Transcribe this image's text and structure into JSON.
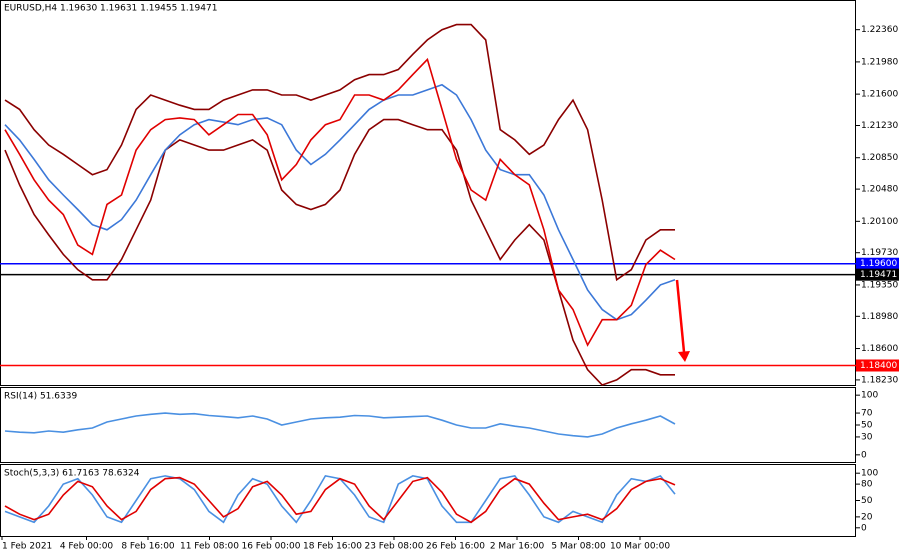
{
  "chart_data": [
    {
      "type": "line",
      "title": "EURUSD,H4  1.19630 1.19631 1.19455 1.19471",
      "ylim": [
        1.1817,
        1.2271
      ],
      "yticks": [
        {
          "value": 1.2236,
          "label": "1.22360"
        },
        {
          "value": 1.2198,
          "label": "1.21980"
        },
        {
          "value": 1.216,
          "label": "1.21600"
        },
        {
          "value": 1.2123,
          "label": "1.21230"
        },
        {
          "value": 1.2085,
          "label": "1.20850"
        },
        {
          "value": 1.2048,
          "label": "1.20480"
        },
        {
          "value": 1.201,
          "label": "1.20100"
        },
        {
          "value": 1.1973,
          "label": "1.19730"
        },
        {
          "value": 1.1935,
          "label": "1.19350"
        },
        {
          "value": 1.1898,
          "label": "1.18980"
        },
        {
          "value": 1.186,
          "label": "1.18600"
        },
        {
          "value": 1.1823,
          "label": "1.18230"
        }
      ],
      "levels": [
        {
          "value": 1.196,
          "label": "1.19600",
          "color": "#0000ff"
        },
        {
          "value": 1.19471,
          "label": "1.19471",
          "color": "#000000"
        },
        {
          "value": 1.184,
          "label": "1.18400",
          "color": "#ff0000"
        }
      ],
      "xticks": [
        "1 Feb 2021",
        "4 Feb 00:00",
        "8 Feb 16:00",
        "11 Feb 08:00",
        "16 Feb 00:00",
        "18 Feb 16:00",
        "23 Feb 08:00",
        "26 Feb 16:00",
        "2 Mar 16:00",
        "5 Mar 08:00",
        "10 Mar 00:00"
      ],
      "series": [
        {
          "color": "#8b0000",
          "values": [
            1.2153,
            1.2142,
            1.2118,
            1.21,
            1.2089,
            1.2077,
            1.2065,
            1.2071,
            1.21,
            1.2142,
            1.2159,
            1.2153,
            1.2147,
            1.2142,
            1.2142,
            1.2153,
            1.2159,
            1.2165,
            1.2165,
            1.2159,
            1.2159,
            1.2153,
            1.2159,
            1.2165,
            1.2177,
            1.2183,
            1.2183,
            1.2189,
            1.2207,
            1.2224,
            1.2236,
            1.2242,
            1.2242,
            1.2224,
            1.2118,
            1.2106,
            1.2089,
            1.21,
            1.213,
            1.2153,
            1.2118,
            1.2035,
            1.1941,
            1.1953,
            1.1988,
            1.2,
            1.2
          ]
        },
        {
          "color": "#8b0000",
          "values": [
            1.2094,
            1.2053,
            1.2018,
            1.1994,
            1.1971,
            1.1953,
            1.1941,
            1.1941,
            1.1965,
            1.2,
            1.2035,
            1.2094,
            1.2106,
            1.21,
            1.2094,
            1.2094,
            1.21,
            1.2106,
            1.2094,
            1.2047,
            1.203,
            1.2024,
            1.203,
            1.2047,
            1.2089,
            1.2118,
            1.213,
            1.213,
            1.2124,
            1.2118,
            1.2118,
            1.2094,
            1.2035,
            1.2,
            1.1965,
            1.1988,
            1.2006,
            1.1988,
            1.1929,
            1.187,
            1.1835,
            1.1817,
            1.1823,
            1.1835,
            1.1835,
            1.1829,
            1.1829
          ]
        },
        {
          "color": "#3c78d8",
          "values": [
            1.2124,
            1.2106,
            1.2083,
            1.2059,
            1.2041,
            1.2024,
            1.2006,
            1.2,
            1.2012,
            1.2035,
            1.2065,
            1.2094,
            1.2112,
            1.2124,
            1.213,
            1.2127,
            1.2124,
            1.213,
            1.2132,
            1.2124,
            1.2094,
            1.2077,
            1.2089,
            1.2106,
            1.2124,
            1.2142,
            1.2153,
            1.2159,
            1.2159,
            1.2165,
            1.2171,
            1.2159,
            1.213,
            1.2094,
            1.2071,
            1.2065,
            1.2065,
            1.2041,
            1.2,
            1.1965,
            1.1929,
            1.1906,
            1.1894,
            1.19,
            1.1917,
            1.1935,
            1.1941
          ]
        },
        {
          "color": "#e00000",
          "values": [
            1.2118,
            1.2089,
            1.2059,
            1.2035,
            1.2018,
            1.1982,
            1.1971,
            1.203,
            1.2041,
            1.2094,
            1.2118,
            1.213,
            1.2132,
            1.213,
            1.2112,
            1.2124,
            1.2136,
            1.2136,
            1.2112,
            1.2059,
            1.2077,
            1.2106,
            1.2124,
            1.213,
            1.2159,
            1.2159,
            1.2153,
            1.2165,
            1.2183,
            1.2201,
            1.2142,
            1.2083,
            1.2047,
            1.2035,
            1.2083,
            1.2065,
            1.2053,
            1.2,
            1.1929,
            1.1906,
            1.1864,
            1.1894,
            1.1894,
            1.1911,
            1.1959,
            1.1976,
            1.1965
          ]
        }
      ]
    },
    {
      "type": "line",
      "title": "RSI(14) 51.6339",
      "ylim": [
        -12,
        112
      ],
      "yticks": [
        0,
        30,
        50,
        70,
        100
      ],
      "series": [
        {
          "color": "#4a90e2",
          "values": [
            40,
            38,
            37,
            40,
            38,
            42,
            45,
            55,
            60,
            65,
            68,
            70,
            68,
            69,
            66,
            64,
            62,
            65,
            60,
            50,
            55,
            60,
            62,
            63,
            66,
            65,
            62,
            63,
            64,
            65,
            58,
            50,
            45,
            45,
            52,
            48,
            45,
            40,
            35,
            32,
            30,
            35,
            45,
            52,
            58,
            65,
            51.6339
          ]
        }
      ]
    },
    {
      "type": "line",
      "title": "Stoch(5,3,3) 61.7163 78.6324",
      "ylim": [
        -15,
        115
      ],
      "yticks": [
        0,
        20,
        50,
        80,
        100
      ],
      "series": [
        {
          "color": "#4a90e2",
          "values": [
            30,
            20,
            10,
            40,
            80,
            90,
            60,
            20,
            10,
            50,
            90,
            95,
            90,
            70,
            30,
            10,
            60,
            90,
            80,
            40,
            10,
            50,
            95,
            90,
            60,
            20,
            10,
            80,
            95,
            90,
            40,
            10,
            10,
            50,
            90,
            95,
            60,
            20,
            10,
            30,
            20,
            10,
            60,
            90,
            85,
            95,
            61.7163
          ]
        },
        {
          "color": "#e00000",
          "values": [
            40,
            25,
            15,
            25,
            60,
            85,
            75,
            40,
            15,
            30,
            70,
            90,
            92,
            80,
            50,
            20,
            35,
            75,
            85,
            60,
            25,
            30,
            70,
            90,
            80,
            40,
            15,
            50,
            85,
            92,
            65,
            25,
            10,
            30,
            70,
            90,
            80,
            45,
            15,
            20,
            25,
            15,
            35,
            70,
            85,
            90,
            78.6324
          ]
        }
      ]
    }
  ]
}
